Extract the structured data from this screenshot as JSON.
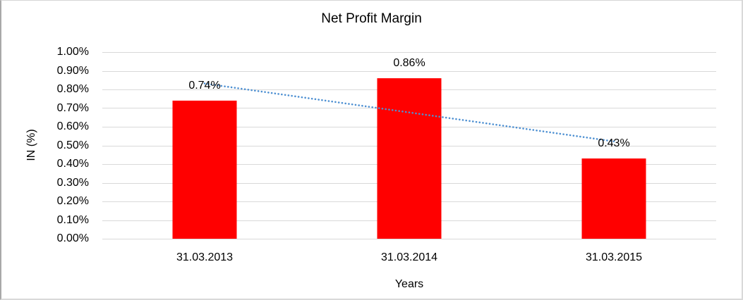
{
  "chart_data": {
    "type": "bar",
    "title": "Net Profit Margin",
    "xlabel": "Years",
    "ylabel": "IN (%)",
    "categories": [
      "31.03.2013",
      "31.03.2014",
      "31.03.2015"
    ],
    "values": [
      0.74,
      0.86,
      0.43
    ],
    "data_labels": [
      "0.74%",
      "0.86%",
      "0.43%"
    ],
    "unit": "%",
    "ylim": [
      0,
      1.0
    ],
    "ytick_step": 0.1,
    "ytick_labels": [
      "0.00%",
      "0.10%",
      "0.20%",
      "0.30%",
      "0.40%",
      "0.50%",
      "0.60%",
      "0.70%",
      "0.80%",
      "0.90%",
      "1.00%"
    ],
    "grid": true,
    "legend": "none",
    "bar_color": "#FF0000",
    "gridline_color": "#D9D9D9",
    "trendline": {
      "type": "linear",
      "style": "dotted",
      "color": "#4E90D2"
    }
  }
}
